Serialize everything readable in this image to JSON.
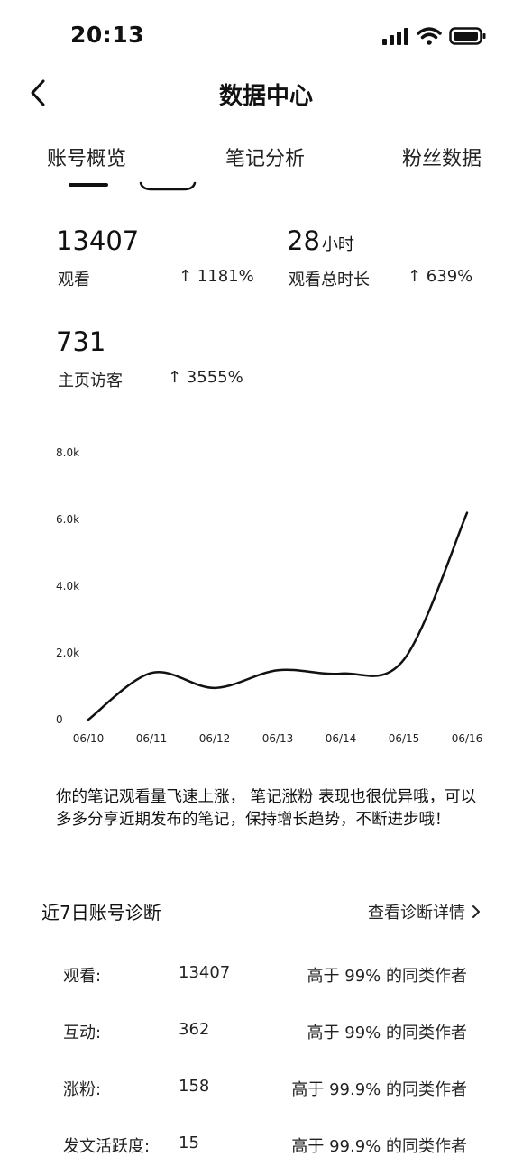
{
  "status": {
    "time": "20:13"
  },
  "nav": {
    "title": "数据中心"
  },
  "tabs": [
    {
      "label": "账号概览",
      "selected": true
    },
    {
      "label": "笔记分析",
      "selected": false
    },
    {
      "label": "粉丝数据",
      "selected": false
    }
  ],
  "metrics": {
    "views": {
      "value": "13407",
      "label": "观看",
      "change": "↑ 1181%"
    },
    "watch_time": {
      "value": "28",
      "unit": "小时",
      "label": "观看总时长",
      "change": "↑ 639%"
    },
    "visitors": {
      "value": "731",
      "label": "主页访客",
      "change": "↑ 3555%"
    }
  },
  "chart_data": {
    "type": "line",
    "title": "",
    "xlabel": "",
    "ylabel": "",
    "x": [
      "06/10",
      "06/11",
      "06/12",
      "06/13",
      "06/14",
      "06/15",
      "06/16"
    ],
    "yticks": [
      "0",
      "2.0k",
      "4.0k",
      "6.0k",
      "8.0k"
    ],
    "ylim": [
      0,
      8000
    ],
    "grid": false,
    "series": [
      {
        "values": [
          0,
          1400,
          950,
          1480,
          1380,
          1800,
          6200
        ]
      }
    ],
    "line_color": "#111111"
  },
  "summary": "你的笔记观看量飞速上涨， 笔记涨粉 表现也很优异哦，可以多多分享近期发布的笔记，保持增长趋势，不断进步哦！",
  "diagnosis": {
    "title": "近7日账号诊断",
    "link_label": "查看诊断详情",
    "rows": [
      {
        "label": "观看:",
        "value": "13407",
        "compare": "高于 99% 的同类作者"
      },
      {
        "label": "互动:",
        "value": "362",
        "compare": "高于 99% 的同类作者"
      },
      {
        "label": "涨粉:",
        "value": "158",
        "compare": "高于 99.9% 的同类作者"
      },
      {
        "label": "发文活跃度:",
        "value": "15",
        "compare": "高于 99.9% 的同类作者"
      }
    ]
  }
}
